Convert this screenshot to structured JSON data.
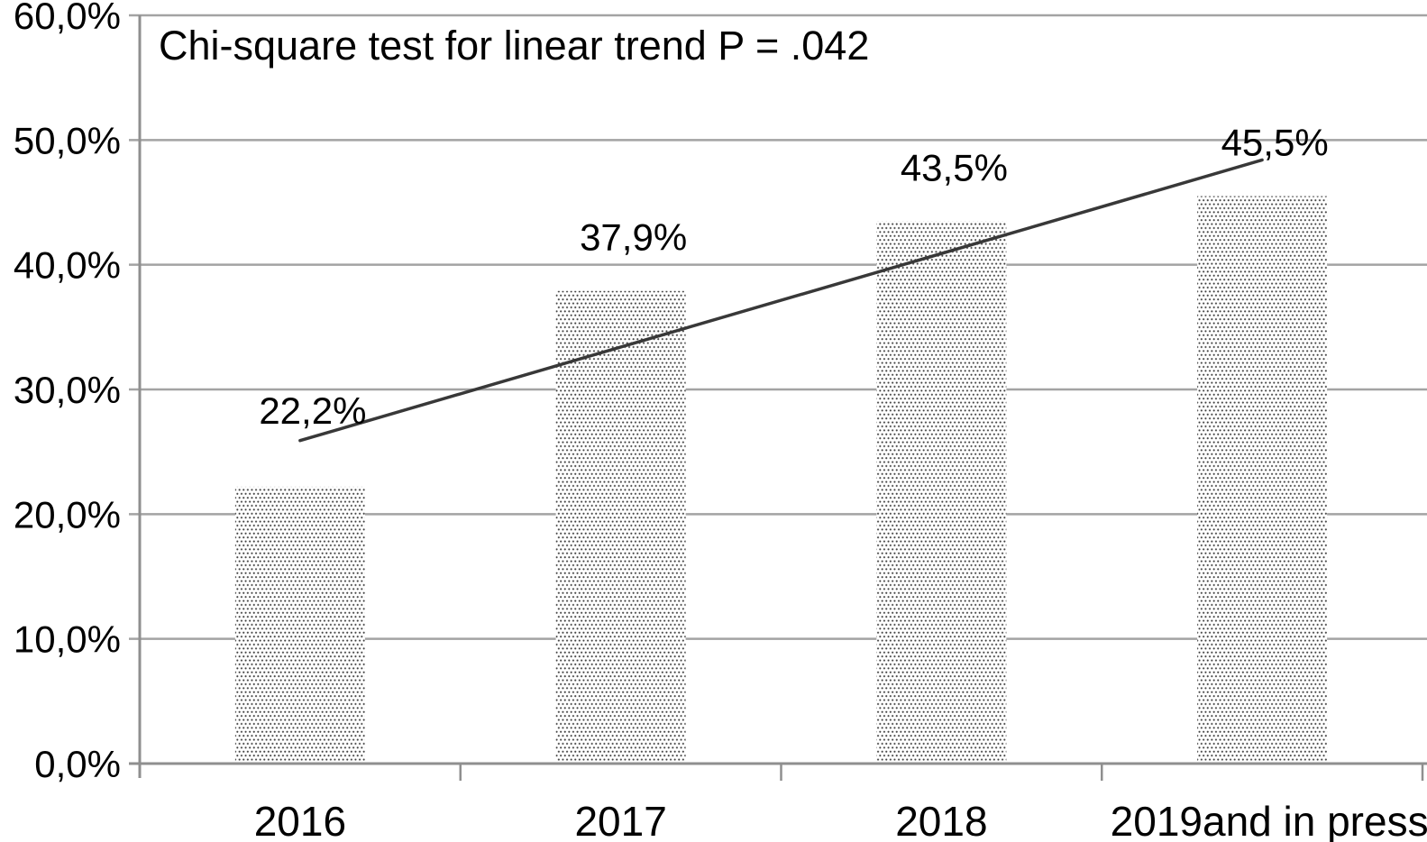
{
  "chart_data": {
    "type": "bar",
    "annotation": "Chi-square test for linear trend P = .042",
    "categories": [
      "2016",
      "2017",
      "2018",
      "2019and in press"
    ],
    "values": [
      22.2,
      37.9,
      43.5,
      45.5
    ],
    "value_labels": [
      "22,2%",
      "37,9%",
      "43,5%",
      "45,5%"
    ],
    "y_tick_labels": [
      "0,0%",
      "10,0%",
      "20,0%",
      "30,0%",
      "40,0%",
      "50,0%",
      "60,0%"
    ],
    "y_tick_values": [
      0,
      10,
      20,
      30,
      40,
      50,
      60
    ],
    "ylim": [
      0,
      60
    ],
    "grid": true,
    "legend_position": "none",
    "xlabel": "",
    "ylabel": "",
    "trend_line": {
      "start_value_pct": 25.9,
      "end_value_pct": 48.4
    },
    "bar_style": "dotted-pattern",
    "colors": {
      "background": "#ffffff",
      "grid": "#a3a3a3",
      "axis": "#8f8f8f",
      "trend": "#383838",
      "bar_dot": "#414141",
      "text": "#000000"
    }
  }
}
